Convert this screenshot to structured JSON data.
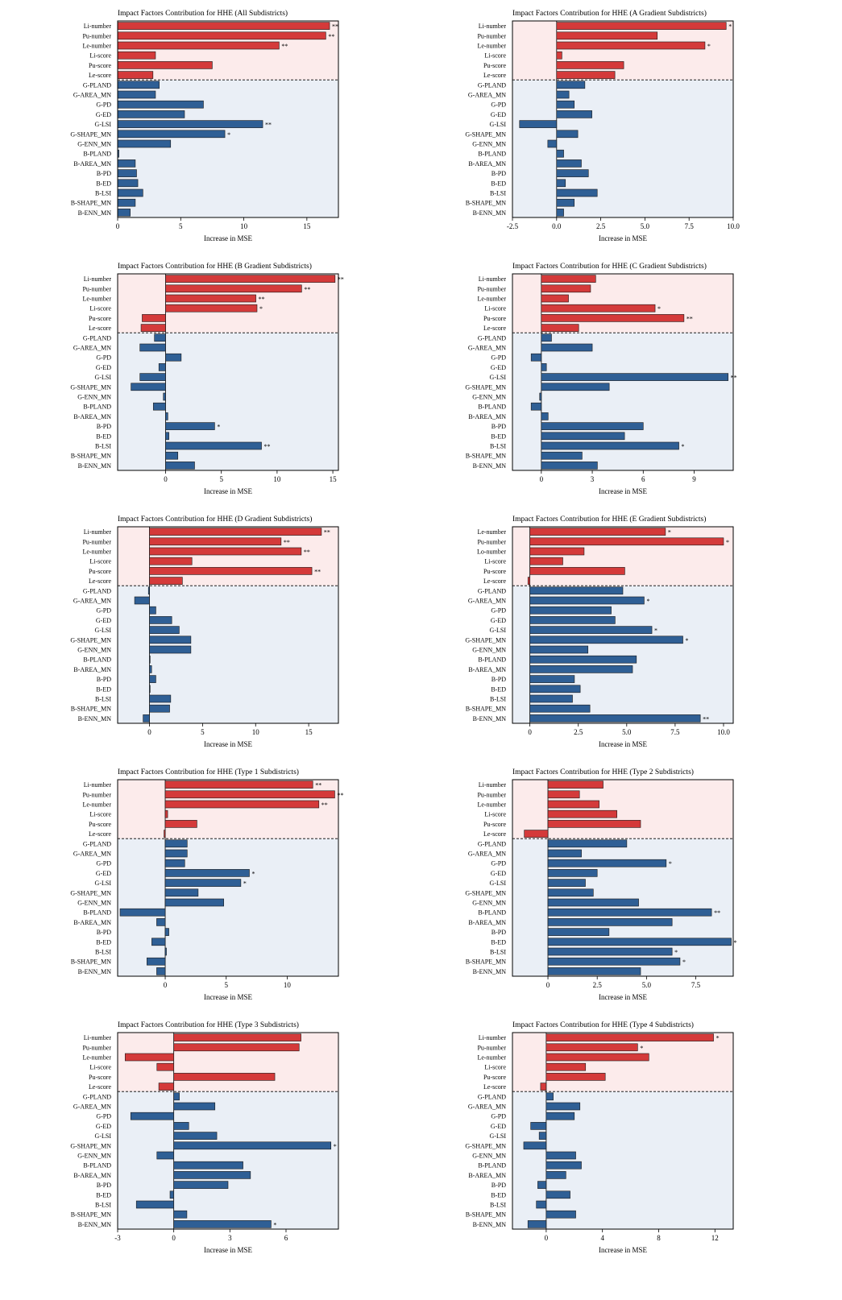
{
  "figure": {
    "colors": {
      "red": "#d43a3a",
      "blue": "#2f5f95",
      "edge": "#1a1a1a",
      "red_bg": "#fcebeb",
      "blue_bg": "#eaeff6"
    }
  },
  "chart_data": [
    {
      "type": "bar",
      "title": "Impact Factors Contribution for HHE (All Subdistricts)",
      "xlabel": "Increase in MSE",
      "xlim": [
        0,
        17.5
      ],
      "xticks": [
        0,
        5,
        10,
        15
      ],
      "xtick_labels": [
        "0",
        "5",
        "10",
        "15"
      ],
      "categories": [
        "Li-number",
        "Pu-number",
        "Le-number",
        "Li-score",
        "Pu-score",
        "Le-score",
        "G-PLAND",
        "G-AREA_MN",
        "G-PD",
        "G-ED",
        "G-LSI",
        "G-SHAPE_MN",
        "G-ENN_MN",
        "B-PLAND",
        "B-AREA_MN",
        "B-PD",
        "B-ED",
        "B-LSI",
        "B-SHAPE_MN",
        "B-ENN_MN"
      ],
      "values": [
        16.8,
        16.5,
        12.8,
        3.0,
        7.5,
        2.8,
        3.3,
        3.0,
        6.8,
        5.3,
        11.5,
        8.5,
        4.2,
        0.1,
        1.4,
        1.5,
        1.6,
        2.0,
        1.4,
        1.0
      ],
      "significance": [
        "**",
        "**",
        "**",
        "",
        "",
        "",
        "",
        "",
        "",
        "",
        "**",
        "*",
        "",
        "",
        "",
        "",
        "",
        "",
        "",
        ""
      ]
    },
    {
      "type": "bar",
      "title": "Impact Factors Contribution for HHE (A Gradient Subdistricts)",
      "xlabel": "Increase in MSE",
      "xlim": [
        -2.5,
        10.0
      ],
      "xticks": [
        -2.5,
        0.0,
        2.5,
        5.0,
        7.5,
        10.0
      ],
      "xtick_labels": [
        "-2.5",
        "0.0",
        "2.5",
        "5.0",
        "7.5",
        "10.0"
      ],
      "categories": [
        "Li-number",
        "Pu-number",
        "Le-number",
        "Li-score",
        "Pu-score",
        "Le-score",
        "G-PLAND",
        "G-AREA_MN",
        "G-PD",
        "G-ED",
        "G-LSI",
        "G-SHAPE_MN",
        "G-ENN_MN",
        "B-PLAND",
        "B-AREA_MN",
        "B-PD",
        "B-ED",
        "B-LSI",
        "B-SHAPE_MN",
        "B-ENN_MN"
      ],
      "values": [
        9.6,
        5.7,
        8.4,
        0.3,
        3.8,
        3.3,
        1.6,
        0.7,
        1.0,
        2.0,
        -2.1,
        1.2,
        -0.5,
        0.4,
        1.4,
        1.8,
        0.5,
        2.3,
        1.0,
        0.4
      ],
      "significance": [
        "*",
        "",
        "*",
        "",
        "",
        "",
        "",
        "",
        "",
        "",
        "",
        "",
        "",
        "",
        "",
        "",
        "",
        "",
        "",
        ""
      ]
    },
    {
      "type": "bar",
      "title": "Impact Factors Contribution for HHE (B Gradient Subdistricts)",
      "xlabel": "Increase in MSE",
      "xlim": [
        -4.3,
        15.5
      ],
      "xticks": [
        0,
        5,
        10,
        15
      ],
      "xtick_labels": [
        "0",
        "5",
        "10",
        "15"
      ],
      "categories": [
        "Li-number",
        "Pu-number",
        "Le-number",
        "Li-score",
        "Pu-score",
        "Le-score",
        "G-PLAND",
        "G-AREA_MN",
        "G-PD",
        "G-ED",
        "G-LSI",
        "G-SHAPE_MN",
        "G-ENN_MN",
        "B-PLAND",
        "B-AREA_MN",
        "B-PD",
        "B-ED",
        "B-LSI",
        "B-SHAPE_MN",
        "B-ENN_MN"
      ],
      "values": [
        15.2,
        12.2,
        8.1,
        8.2,
        -2.1,
        -2.2,
        -1.0,
        -2.3,
        1.4,
        -0.6,
        -2.3,
        -3.1,
        -0.2,
        -1.1,
        0.2,
        4.4,
        0.3,
        8.6,
        1.1,
        2.6
      ],
      "significance": [
        "**",
        "**",
        "**",
        "*",
        "",
        "",
        "",
        "",
        "",
        "",
        "",
        "",
        "",
        "",
        "",
        "*",
        "",
        "**",
        "",
        ""
      ]
    },
    {
      "type": "bar",
      "title": "Impact Factors Contribution for HHE (C Gradient Subdistricts)",
      "xlabel": "Increase in MSE",
      "xlim": [
        -1.7,
        11.3
      ],
      "xticks": [
        0,
        3,
        6,
        9
      ],
      "xtick_labels": [
        "0",
        "3",
        "6",
        "9"
      ],
      "categories": [
        "Li-number",
        "Pu-number",
        "Le-number",
        "Li-score",
        "Pu-score",
        "Le-score",
        "G-PLAND",
        "G-AREA_MN",
        "G-PD",
        "G-ED",
        "G-LSI",
        "G-SHAPE_MN",
        "G-ENN_MN",
        "B-PLAND",
        "B-AREA_MN",
        "B-PD",
        "B-ED",
        "B-LSI",
        "B-SHAPE_MN",
        "B-ENN_MN"
      ],
      "values": [
        3.2,
        2.9,
        1.6,
        6.7,
        8.4,
        2.2,
        0.6,
        3.0,
        -0.6,
        0.3,
        11.0,
        4.0,
        -0.1,
        -0.6,
        0.4,
        6.0,
        4.9,
        8.1,
        2.4,
        3.3
      ],
      "significance": [
        "",
        "",
        "",
        "*",
        "**",
        "",
        "",
        "",
        "",
        "",
        "**",
        "",
        "",
        "",
        "",
        "",
        "",
        "*",
        "",
        ""
      ]
    },
    {
      "type": "bar",
      "title": "Impact Factors Contribution for HHE (D Gradient Subdistricts)",
      "xlabel": "Increase in MSE",
      "xlim": [
        -3.0,
        17.8
      ],
      "xticks": [
        0,
        5,
        10,
        15
      ],
      "xtick_labels": [
        "0",
        "5",
        "10",
        "15"
      ],
      "categories": [
        "Li-number",
        "Pu-number",
        "Le-number",
        "Li-score",
        "Pu-score",
        "Le-score",
        "G-PLAND",
        "G-AREA_MN",
        "G-PD",
        "G-ED",
        "G-LSI",
        "G-SHAPE_MN",
        "G-ENN_MN",
        "B-PLAND",
        "B-AREA_MN",
        "B-PD",
        "B-ED",
        "B-LSI",
        "B-SHAPE_MN",
        "B-ENN_MN"
      ],
      "values": [
        16.2,
        12.4,
        14.3,
        4.0,
        15.3,
        3.1,
        -0.1,
        -1.4,
        0.6,
        2.1,
        2.8,
        3.9,
        3.9,
        0.0,
        0.2,
        0.6,
        0.0,
        2.0,
        1.9,
        -0.6
      ],
      "significance": [
        "**",
        "**",
        "**",
        "",
        "**",
        "",
        "",
        "",
        "",
        "",
        "",
        "",
        "",
        "",
        "",
        "",
        "",
        "",
        "",
        ""
      ]
    },
    {
      "type": "bar",
      "title": "Impact Factors Contribution for HHE (E Gradient Subdistricts)",
      "xlabel": "Increase in MSE",
      "xlim": [
        -0.9,
        10.5
      ],
      "xticks": [
        0,
        2.5,
        5.0,
        7.5,
        10.0
      ],
      "xtick_labels": [
        "0",
        "2.5",
        "5.0",
        "7.5",
        "10.0"
      ],
      "categories": [
        "Le-number",
        "Pu-number",
        "Lo-number",
        "Li-score",
        "Pu-score",
        "Le-score",
        "G-PLAND",
        "G-AREA_MN",
        "G-PD",
        "G-ED",
        "G-LSI",
        "G-SHAPE_MN",
        "G-ENN_MN",
        "B-PLAND",
        "B-AREA_MN",
        "B-PD",
        "B-ED",
        "B-LSI",
        "B-SHAPE_MN",
        "B-ENN_MN"
      ],
      "values": [
        7.0,
        10.0,
        2.8,
        1.7,
        4.9,
        -0.1,
        4.8,
        5.9,
        4.2,
        4.4,
        6.3,
        7.9,
        3.0,
        5.5,
        5.3,
        2.3,
        2.6,
        2.2,
        3.1,
        8.8
      ],
      "significance": [
        "*",
        "*",
        "",
        "",
        "",
        "",
        "",
        "*",
        "",
        "",
        "*",
        "*",
        "",
        "",
        "",
        "",
        "",
        "",
        "",
        "**"
      ]
    },
    {
      "type": "bar",
      "title": "Impact Factors Contribution for HHE (Type 1 Subdistricts)",
      "xlabel": "Increase in MSE",
      "xlim": [
        -3.9,
        14.2
      ],
      "xticks": [
        0,
        5,
        10
      ],
      "xtick_labels": [
        "0",
        "5",
        "10"
      ],
      "categories": [
        "Li-number",
        "Pu-number",
        "Le-number",
        "Li-score",
        "Pu-score",
        "Le-score",
        "G-PLAND",
        "G-AREA_MN",
        "G-PD",
        "G-ED",
        "G-LSI",
        "G-SHAPE_MN",
        "G-ENN_MN",
        "B-PLAND",
        "B-AREA_MN",
        "B-PD",
        "B-ED",
        "B-LSI",
        "B-SHAPE_MN",
        "B-ENN_MN"
      ],
      "values": [
        12.1,
        13.9,
        12.6,
        0.2,
        2.6,
        -0.1,
        1.8,
        1.8,
        1.6,
        6.9,
        6.2,
        2.7,
        4.8,
        -3.7,
        -0.7,
        0.3,
        -1.1,
        0.1,
        -1.5,
        -0.7
      ],
      "significance": [
        "**",
        "**",
        "**",
        "",
        "",
        "",
        "",
        "",
        "",
        "*",
        "*",
        "",
        "",
        "",
        "",
        "",
        "",
        "",
        "",
        ""
      ]
    },
    {
      "type": "bar",
      "title": "Impact Factors Contribution for HHE (Type 2 Subdistricts)",
      "xlabel": "Increase in MSE",
      "xlim": [
        -1.8,
        9.4
      ],
      "xticks": [
        0,
        2.5,
        5.0,
        7.5
      ],
      "xtick_labels": [
        "0",
        "2.5",
        "5.0",
        "7.5"
      ],
      "categories": [
        "Li-number",
        "Pu-number",
        "Le-number",
        "Li-score",
        "Pu-score",
        "Le-score",
        "G-PLAND",
        "G-AREA_MN",
        "G-PD",
        "G-ED",
        "G-LSI",
        "G-SHAPE_MN",
        "G-ENN_MN",
        "B-PLAND",
        "B-AREA_MN",
        "B-PD",
        "B-ED",
        "B-LSI",
        "B-SHAPE_MN",
        "B-ENN_MN"
      ],
      "values": [
        2.8,
        1.6,
        2.6,
        3.5,
        4.7,
        -1.2,
        4.0,
        1.7,
        6.0,
        2.5,
        1.9,
        2.3,
        4.6,
        8.3,
        6.3,
        3.1,
        9.3,
        6.3,
        6.7,
        4.7
      ],
      "significance": [
        "",
        "",
        "",
        "",
        "",
        "",
        "",
        "",
        "*",
        "",
        "",
        "",
        "",
        "**",
        "",
        "",
        "*",
        "*",
        "*",
        ""
      ]
    },
    {
      "type": "bar",
      "title": "Impact Factors Contribution for HHE (Type 3 Subdistricts)",
      "xlabel": "Increase in MSE",
      "xlim": [
        -3.0,
        8.8
      ],
      "xticks": [
        -3,
        0,
        3,
        6
      ],
      "xtick_labels": [
        "-3",
        "0",
        "3",
        "6"
      ],
      "categories": [
        "Li-number",
        "Pu-number",
        "Le-number",
        "Li-score",
        "Pu-score",
        "Le-score",
        "G-PLAND",
        "G-AREA_MN",
        "G-PD",
        "G-ED",
        "G-LSI",
        "G-SHAPE_MN",
        "G-ENN_MN",
        "B-PLAND",
        "B-AREA_MN",
        "B-PD",
        "B-ED",
        "B-LSI",
        "B-SHAPE_MN",
        "B-ENN_MN"
      ],
      "values": [
        6.8,
        6.7,
        -2.6,
        -0.9,
        5.4,
        -0.8,
        0.3,
        2.2,
        -2.3,
        0.8,
        2.3,
        8.4,
        -0.9,
        3.7,
        4.1,
        2.9,
        -0.2,
        -2.0,
        0.7,
        5.2
      ],
      "significance": [
        "",
        "",
        "",
        "",
        "",
        "",
        "",
        "",
        "",
        "",
        "",
        "*",
        "",
        "",
        "",
        "",
        "",
        "",
        "",
        "*"
      ]
    },
    {
      "type": "bar",
      "title": "Impact Factors Contribution for HHE (Type 4 Subdistricts)",
      "xlabel": "Increase in MSE",
      "xlim": [
        -2.4,
        13.3
      ],
      "xticks": [
        0,
        4,
        8,
        12
      ],
      "xtick_labels": [
        "0",
        "4",
        "8",
        "12"
      ],
      "categories": [
        "Li-number",
        "Pu-number",
        "Le-number",
        "Li-score",
        "Pu-score",
        "Le-score",
        "G-PLAND",
        "G-AREA_MN",
        "G-PD",
        "G-ED",
        "G-LSI",
        "G-SHAPE_MN",
        "G-ENN_MN",
        "B-PLAND",
        "B-AREA_MN",
        "B-PD",
        "B-ED",
        "B-LSI",
        "B-SHAPE_MN",
        "B-ENN_MN"
      ],
      "values": [
        11.9,
        6.5,
        7.3,
        2.8,
        4.2,
        -0.4,
        0.5,
        2.4,
        2.0,
        -1.1,
        -0.5,
        -1.6,
        2.1,
        2.5,
        1.4,
        -0.6,
        1.7,
        -0.7,
        2.1,
        -1.3
      ],
      "significance": [
        "*",
        "*",
        "",
        "",
        "",
        "",
        "",
        "",
        "",
        "",
        "",
        "",
        "",
        "",
        "",
        "",
        "",
        "",
        "",
        ""
      ]
    }
  ]
}
